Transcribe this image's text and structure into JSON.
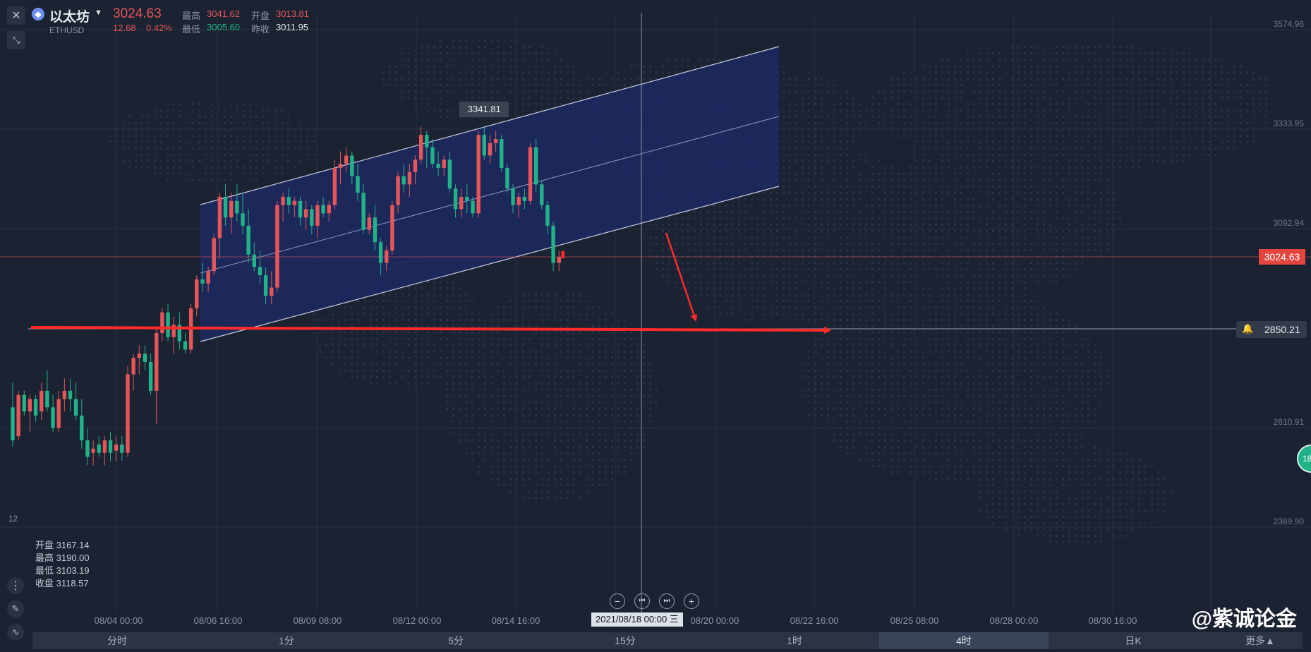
{
  "header": {
    "coin_name": "以太坊",
    "symbol": "ETHUSD",
    "price": "3024.63",
    "change": "12.68",
    "change_pct": "0.42%",
    "high_label": "最高",
    "high": "3041.62",
    "open_label": "开盘",
    "open": "3013.81",
    "low_label": "最低",
    "low": "3005.60",
    "prev_close_label": "昨收",
    "prev_close": "3011.95"
  },
  "ohlc_panel": {
    "open_label": "开盘",
    "open": "3167.14",
    "high_label": "最高",
    "high": "3190.00",
    "low_label": "最低",
    "low": "3103.19",
    "close_label": "收盘",
    "close": "3118.57"
  },
  "left_edge_label": "12",
  "price_tag": "3024.63",
  "alert_level": "2850.21",
  "peak_label": "3341.81",
  "crosshair_date": "2021/08/18 00:00 三",
  "side_badge": "18",
  "timeframes": [
    "分时",
    "1分",
    "5分",
    "15分",
    "1时",
    "4时",
    "日K"
  ],
  "active_timeframe": "4时",
  "more_label": "更多▲",
  "watermark": "@紫诚论金",
  "colors": {
    "up": "#e5565a",
    "down": "#22b28a",
    "channel": "#1e2a66",
    "arrow": "#ff2b2b"
  },
  "chart_data": {
    "type": "candlestick",
    "y_ticks": [
      3574.96,
      3333.95,
      3092.94,
      2610.91,
      2369.9
    ],
    "x_ticks": [
      "08/04 00:00",
      "08/06 16:00",
      "08/09 08:00",
      "08/12 00:00",
      "08/14 16:00",
      "08/20 00:00",
      "08/22 16:00",
      "08/25 08:00",
      "08/28 00:00",
      "08/30 16:00"
    ],
    "ylim": [
      2160,
      3650
    ],
    "candles": [
      [
        2660,
        2720,
        2565,
        2580
      ],
      [
        2590,
        2700,
        2580,
        2690
      ],
      [
        2690,
        2700,
        2640,
        2650
      ],
      [
        2650,
        2690,
        2600,
        2680
      ],
      [
        2680,
        2690,
        2625,
        2640
      ],
      [
        2650,
        2720,
        2630,
        2700
      ],
      [
        2700,
        2750,
        2650,
        2660
      ],
      [
        2660,
        2690,
        2600,
        2610
      ],
      [
        2610,
        2700,
        2600,
        2680
      ],
      [
        2680,
        2730,
        2650,
        2700
      ],
      [
        2700,
        2730,
        2650,
        2680
      ],
      [
        2680,
        2720,
        2630,
        2640
      ],
      [
        2640,
        2680,
        2560,
        2580
      ],
      [
        2580,
        2610,
        2520,
        2540
      ],
      [
        2550,
        2580,
        2520,
        2560
      ],
      [
        2570,
        2590,
        2540,
        2550
      ],
      [
        2550,
        2590,
        2520,
        2580
      ],
      [
        2580,
        2600,
        2530,
        2550
      ],
      [
        2555,
        2590,
        2530,
        2570
      ],
      [
        2570,
        2590,
        2530,
        2550
      ],
      [
        2550,
        2760,
        2540,
        2740
      ],
      [
        2740,
        2790,
        2700,
        2780
      ],
      [
        2780,
        2810,
        2740,
        2790
      ],
      [
        2790,
        2810,
        2750,
        2770
      ],
      [
        2770,
        2790,
        2690,
        2700
      ],
      [
        2700,
        2850,
        2620,
        2840
      ],
      [
        2840,
        2900,
        2820,
        2890
      ],
      [
        2890,
        2910,
        2820,
        2830
      ],
      [
        2830,
        2880,
        2790,
        2860
      ],
      [
        2860,
        2890,
        2800,
        2820
      ],
      [
        2820,
        2840,
        2790,
        2800
      ],
      [
        2800,
        2910,
        2790,
        2900
      ],
      [
        2900,
        2980,
        2880,
        2970
      ],
      [
        2970,
        3010,
        2940,
        2960
      ],
      [
        2960,
        3000,
        2940,
        2990
      ],
      [
        2990,
        3080,
        2980,
        3070
      ],
      [
        3070,
        3180,
        3020,
        3170
      ],
      [
        3170,
        3200,
        3100,
        3120
      ],
      [
        3120,
        3180,
        3080,
        3160
      ],
      [
        3160,
        3200,
        3110,
        3130
      ],
      [
        3130,
        3180,
        3080,
        3100
      ],
      [
        3100,
        3140,
        3010,
        3030
      ],
      [
        3030,
        3060,
        2990,
        3000
      ],
      [
        3000,
        3040,
        2960,
        2980
      ],
      [
        2980,
        3000,
        2910,
        2930
      ],
      [
        2930,
        2990,
        2910,
        2950
      ],
      [
        2950,
        3160,
        2940,
        3150
      ],
      [
        3150,
        3180,
        3110,
        3170
      ],
      [
        3170,
        3190,
        3130,
        3150
      ],
      [
        3150,
        3170,
        3120,
        3160
      ],
      [
        3160,
        3170,
        3100,
        3120
      ],
      [
        3120,
        3160,
        3090,
        3140
      ],
      [
        3140,
        3150,
        3080,
        3100
      ],
      [
        3100,
        3160,
        3070,
        3150
      ],
      [
        3150,
        3170,
        3120,
        3130
      ],
      [
        3130,
        3160,
        3110,
        3150
      ],
      [
        3150,
        3260,
        3140,
        3240
      ],
      [
        3240,
        3280,
        3200,
        3250
      ],
      [
        3250,
        3290,
        3230,
        3270
      ],
      [
        3270,
        3280,
        3200,
        3220
      ],
      [
        3220,
        3250,
        3160,
        3180
      ],
      [
        3180,
        3200,
        3080,
        3090
      ],
      [
        3090,
        3130,
        3080,
        3120
      ],
      [
        3120,
        3150,
        3040,
        3060
      ],
      [
        3060,
        3070,
        2980,
        3010
      ],
      [
        3010,
        3050,
        2990,
        3040
      ],
      [
        3040,
        3160,
        3030,
        3150
      ],
      [
        3150,
        3230,
        3130,
        3220
      ],
      [
        3220,
        3250,
        3180,
        3200
      ],
      [
        3200,
        3250,
        3170,
        3230
      ],
      [
        3230,
        3270,
        3200,
        3260
      ],
      [
        3260,
        3340,
        3250,
        3320
      ],
      [
        3320,
        3330,
        3240,
        3290
      ],
      [
        3290,
        3310,
        3240,
        3250
      ],
      [
        3250,
        3280,
        3220,
        3240
      ],
      [
        3240,
        3270,
        3220,
        3260
      ],
      [
        3260,
        3280,
        3180,
        3190
      ],
      [
        3190,
        3200,
        3120,
        3140
      ],
      [
        3140,
        3190,
        3120,
        3170
      ],
      [
        3170,
        3200,
        3130,
        3160
      ],
      [
        3160,
        3170,
        3120,
        3130
      ],
      [
        3130,
        3330,
        3120,
        3320
      ],
      [
        3320,
        3342,
        3260,
        3270
      ],
      [
        3270,
        3320,
        3250,
        3300
      ],
      [
        3300,
        3330,
        3280,
        3310
      ],
      [
        3310,
        3320,
        3230,
        3240
      ],
      [
        3240,
        3250,
        3180,
        3190
      ],
      [
        3190,
        3200,
        3130,
        3150
      ],
      [
        3150,
        3180,
        3120,
        3170
      ],
      [
        3170,
        3190,
        3140,
        3160
      ],
      [
        3160,
        3300,
        3150,
        3290
      ],
      [
        3290,
        3310,
        3180,
        3200
      ],
      [
        3200,
        3210,
        3140,
        3150
      ],
      [
        3150,
        3160,
        3080,
        3100
      ],
      [
        3100,
        3110,
        2990,
        3010
      ],
      [
        3010,
        3040,
        2990,
        3024.63
      ]
    ]
  }
}
